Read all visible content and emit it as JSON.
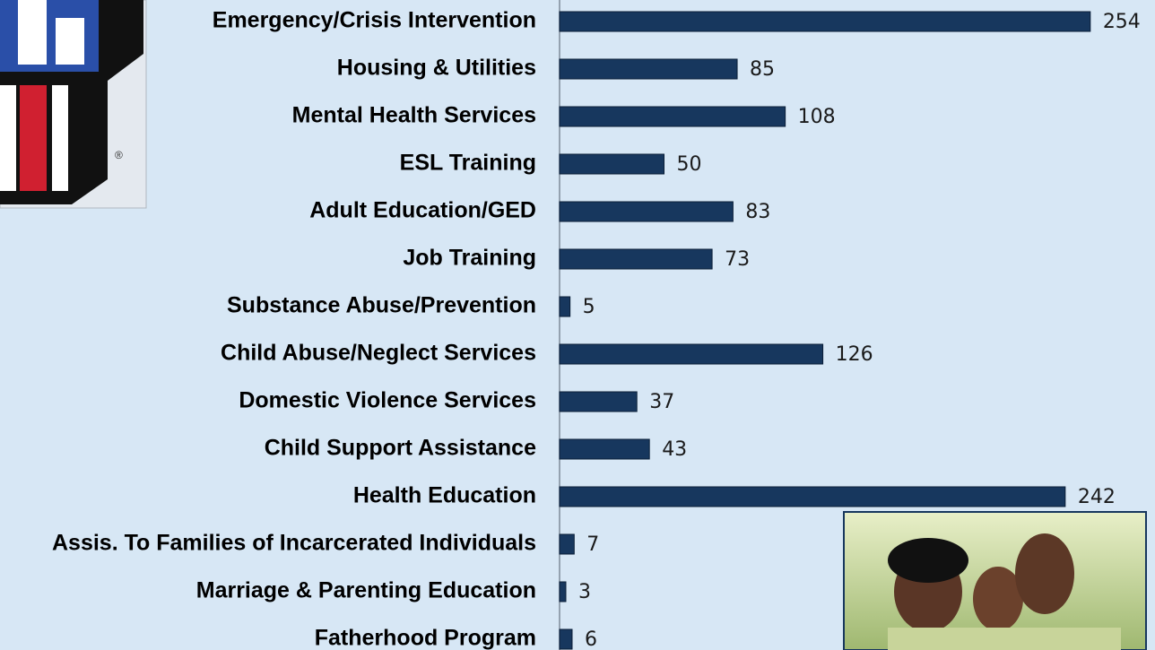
{
  "chart_data": {
    "type": "bar",
    "orientation": "horizontal",
    "color": "#17375e",
    "categories": [
      "Emergency/Crisis Intervention",
      "Housing & Utilities",
      "Mental Health Services",
      "ESL Training",
      "Adult Education/GED",
      "Job Training",
      "Substance Abuse/Prevention",
      "Child Abuse/Neglect Services",
      "Domestic Violence Services",
      "Child Support Assistance",
      "Health Education",
      "Assis. To Families of Incarcerated Individuals",
      "Marriage & Parenting Education",
      "Fatherhood Program"
    ],
    "values": [
      254,
      85,
      108,
      50,
      83,
      73,
      5,
      126,
      37,
      43,
      242,
      7,
      3,
      6
    ]
  }
}
